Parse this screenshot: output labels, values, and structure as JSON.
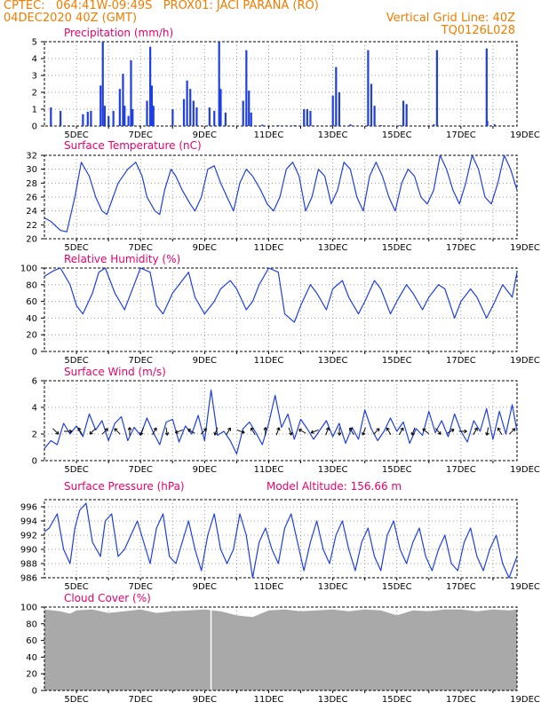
{
  "header": {
    "line1_left": "CPTEC:   064:41W-09:49S   PROX01: JACI PARANA (RO)",
    "line2_left": "04DEC2020 40Z (GMT)",
    "line2_right": "Vertical Grid Line: 40Z",
    "line3_right": "TQ0126L028"
  },
  "colors": {
    "header": "#f07c00",
    "title": "#e8006a",
    "line": "#1f3fe0",
    "cloud": "#a9a9a9",
    "grid": "#9a9a9a"
  },
  "chart_data": [
    {
      "type": "bar",
      "title": "Precipitation (mm/h)",
      "ylim": [
        0,
        5
      ],
      "yticks": [
        0,
        1,
        2,
        3,
        4,
        5
      ],
      "xticks": [
        "5DEC",
        "7DEC",
        "9DEC",
        "11DEC",
        "13DEC",
        "15DEC",
        "17DEC",
        "19DEC"
      ],
      "series": [
        {
          "values": [
            [
              0.2,
              1.1
            ],
            [
              0.5,
              0.9
            ],
            [
              1.2,
              0.7
            ],
            [
              1.35,
              0.85
            ],
            [
              1.45,
              0.9
            ],
            [
              1.75,
              2.4
            ],
            [
              1.82,
              5.0
            ],
            [
              1.88,
              1.2
            ],
            [
              2.0,
              0.6
            ],
            [
              2.15,
              0.9
            ],
            [
              2.35,
              2.2
            ],
            [
              2.45,
              3.1
            ],
            [
              2.5,
              1.2
            ],
            [
              2.62,
              0.6
            ],
            [
              2.7,
              3.9
            ],
            [
              2.75,
              1.0
            ],
            [
              3.2,
              1.5
            ],
            [
              3.3,
              4.7
            ],
            [
              3.35,
              2.4
            ],
            [
              3.4,
              1.2
            ],
            [
              4.0,
              1.0
            ],
            [
              4.35,
              1.6
            ],
            [
              4.45,
              2.7
            ],
            [
              4.55,
              2.2
            ],
            [
              4.65,
              1.5
            ],
            [
              4.75,
              1.1
            ],
            [
              5.15,
              1.1
            ],
            [
              5.3,
              0.9
            ],
            [
              5.45,
              5.0
            ],
            [
              5.5,
              2.2
            ],
            [
              5.65,
              0.8
            ],
            [
              6.2,
              1.5
            ],
            [
              6.3,
              4.5
            ],
            [
              6.38,
              2.1
            ],
            [
              6.45,
              0.8
            ],
            [
              6.8,
              0.08
            ],
            [
              7.3,
              0.05
            ],
            [
              7.8,
              0.05
            ],
            [
              8.1,
              1.0
            ],
            [
              8.2,
              1.0
            ],
            [
              8.3,
              0.9
            ],
            [
              9.0,
              1.8
            ],
            [
              9.1,
              3.5
            ],
            [
              9.2,
              2.0
            ],
            [
              9.55,
              0.1
            ],
            [
              10.1,
              4.5
            ],
            [
              10.2,
              2.5
            ],
            [
              10.3,
              1.2
            ],
            [
              10.5,
              0.05
            ],
            [
              11.1,
              0.05
            ],
            [
              11.2,
              1.5
            ],
            [
              11.3,
              1.3
            ],
            [
              12.15,
              0.1
            ],
            [
              12.25,
              4.5
            ],
            [
              13.8,
              4.6
            ],
            [
              13.82,
              0.3
            ],
            [
              14.05,
              0.1
            ]
          ]
        }
      ]
    },
    {
      "type": "line",
      "title": "Surface Temperature (nC)",
      "ylim": [
        20,
        32
      ],
      "yticks": [
        20,
        22,
        24,
        26,
        28,
        30,
        32
      ],
      "xticks": [
        "5DEC",
        "7DEC",
        "9DEC",
        "11DEC",
        "13DEC",
        "15DEC",
        "17DEC",
        "19DEC"
      ],
      "series": [
        {
          "x": [
            0,
            0.2,
            0.5,
            0.7,
            0.95,
            1.15,
            1.4,
            1.6,
            1.8,
            1.95,
            2.3,
            2.6,
            2.85,
            3.05,
            3.2,
            3.45,
            3.6,
            3.75,
            3.95,
            4.1,
            4.3,
            4.55,
            4.7,
            4.9,
            5.1,
            5.3,
            5.5,
            5.7,
            5.9,
            6.1,
            6.3,
            6.5,
            6.75,
            6.95,
            7.15,
            7.35,
            7.55,
            7.75,
            7.95,
            8.15,
            8.35,
            8.55,
            8.75,
            8.95,
            9.15,
            9.35,
            9.55,
            9.75,
            9.95,
            10.15,
            10.35,
            10.55,
            10.75,
            10.95,
            11.15,
            11.35,
            11.55,
            11.75,
            11.95,
            12.15,
            12.35,
            12.55,
            12.75,
            12.95,
            13.15,
            13.35,
            13.55,
            13.75,
            13.95,
            14.15,
            14.35,
            14.55,
            14.75
          ],
          "values": [
            23,
            22.5,
            21.2,
            21,
            26,
            31,
            29,
            26,
            24,
            23.5,
            28,
            30,
            31,
            29,
            26,
            24,
            23.5,
            27,
            30,
            29,
            27,
            25,
            24,
            26,
            30,
            30.5,
            28,
            26,
            24,
            28,
            30,
            29,
            27,
            25,
            24,
            26,
            30,
            31,
            29,
            24,
            26,
            30,
            29,
            25,
            27,
            31,
            30,
            26,
            24,
            29,
            31,
            29,
            26,
            24,
            28,
            30,
            29,
            26,
            25,
            27,
            32,
            30,
            27,
            25,
            28,
            32,
            30,
            26,
            25,
            28,
            32,
            30,
            27
          ]
        }
      ]
    },
    {
      "type": "line",
      "title": "Relative Humidity (%)",
      "ylim": [
        0,
        100
      ],
      "yticks": [
        0,
        20,
        40,
        60,
        80,
        100
      ],
      "xticks": [
        "5DEC",
        "7DEC",
        "9DEC",
        "11DEC",
        "13DEC",
        "15DEC",
        "17DEC",
        "19DEC"
      ],
      "series": [
        {
          "x": [
            0,
            0.3,
            0.5,
            0.8,
            1.0,
            1.2,
            1.5,
            1.7,
            1.9,
            2.2,
            2.5,
            2.7,
            3.0,
            3.3,
            3.5,
            3.7,
            4.0,
            4.3,
            4.5,
            4.7,
            5.0,
            5.3,
            5.5,
            5.8,
            6.0,
            6.3,
            6.5,
            6.7,
            7.0,
            7.3,
            7.5,
            7.8,
            8.0,
            8.3,
            8.5,
            8.8,
            9.0,
            9.3,
            9.5,
            9.8,
            10.0,
            10.3,
            10.5,
            10.8,
            11.0,
            11.3,
            11.5,
            11.8,
            12.0,
            12.3,
            12.5,
            12.8,
            13.0,
            13.3,
            13.5,
            13.8,
            14.0,
            14.3,
            14.6,
            14.75
          ],
          "values": [
            90,
            97,
            100,
            80,
            55,
            45,
            70,
            95,
            100,
            70,
            50,
            70,
            100,
            95,
            55,
            45,
            70,
            85,
            95,
            65,
            45,
            60,
            75,
            85,
            75,
            50,
            60,
            80,
            100,
            95,
            45,
            35,
            55,
            80,
            70,
            50,
            75,
            85,
            65,
            45,
            60,
            85,
            75,
            45,
            60,
            80,
            70,
            50,
            65,
            80,
            75,
            40,
            60,
            75,
            65,
            40,
            55,
            80,
            65,
            95
          ]
        }
      ]
    },
    {
      "type": "line",
      "title": "Surface Wind (m/s)",
      "ylim": [
        0,
        6
      ],
      "yticks": [
        0,
        2,
        4,
        6
      ],
      "xticks": [
        "5DEC",
        "7DEC",
        "9DEC",
        "11DEC",
        "13DEC",
        "15DEC",
        "17DEC",
        "19DEC"
      ],
      "series": [
        {
          "x": [
            0,
            0.2,
            0.4,
            0.6,
            0.8,
            1.0,
            1.2,
            1.4,
            1.6,
            1.8,
            2.0,
            2.2,
            2.4,
            2.6,
            2.8,
            3.0,
            3.2,
            3.4,
            3.6,
            3.8,
            4.0,
            4.2,
            4.4,
            4.6,
            4.8,
            5.0,
            5.2,
            5.4,
            5.6,
            5.8,
            6.0,
            6.2,
            6.4,
            6.6,
            6.8,
            7.0,
            7.2,
            7.4,
            7.6,
            7.8,
            8.0,
            8.2,
            8.4,
            8.6,
            8.8,
            9.0,
            9.2,
            9.4,
            9.6,
            9.8,
            10.0,
            10.2,
            10.4,
            10.6,
            10.8,
            11.0,
            11.2,
            11.4,
            11.6,
            11.8,
            12.0,
            12.2,
            12.4,
            12.6,
            12.8,
            13.0,
            13.2,
            13.4,
            13.6,
            13.8,
            14.0,
            14.2,
            14.4,
            14.6,
            14.75
          ],
          "values": [
            0.9,
            1.5,
            1.2,
            2.8,
            2.0,
            2.6,
            1.8,
            3.5,
            2.3,
            3.0,
            1.5,
            2.8,
            3.3,
            1.5,
            2.5,
            1.9,
            3.2,
            2.1,
            1.2,
            2.9,
            3.1,
            1.4,
            2.6,
            2.0,
            3.4,
            1.5,
            5.3,
            1.9,
            2.2,
            1.5,
            0.5,
            2.4,
            2.9,
            2.1,
            1.2,
            2.8,
            4.9,
            2.5,
            3.5,
            1.6,
            3.1,
            2.4,
            1.6,
            2.3,
            3.0,
            1.8,
            2.8,
            1.3,
            2.5,
            1.6,
            3.8,
            2.4,
            1.5,
            2.2,
            3.2,
            2.2,
            2.9,
            1.3,
            2.4,
            1.9,
            3.7,
            2.1,
            3.0,
            1.8,
            3.5,
            2.2,
            1.4,
            3.0,
            2.2,
            3.9,
            1.6,
            3.7,
            2.0,
            4.2,
            2.2
          ]
        }
      ],
      "wind_arrows_deg": [
        135,
        90,
        330,
        225,
        45,
        315,
        0,
        200,
        30,
        170,
        250,
        300,
        45,
        200,
        30,
        110,
        330,
        0,
        20,
        160,
        300,
        250,
        20,
        180,
        330,
        200,
        45,
        330,
        30,
        200,
        310,
        140,
        60,
        90,
        30,
        190,
        330,
        45
      ]
    },
    {
      "type": "line",
      "title": "Surface Pressure (hPa)",
      "annotation": "Model Altitude: 156.66 m",
      "ylim": [
        986,
        997
      ],
      "yticks": [
        986,
        988,
        990,
        992,
        994,
        996
      ],
      "xticks": [
        "5DEC",
        "7DEC",
        "9DEC",
        "11DEC",
        "13DEC",
        "15DEC",
        "17DEC",
        "19DEC"
      ],
      "series": [
        {
          "x": [
            0,
            0.15,
            0.4,
            0.6,
            0.8,
            0.95,
            1.1,
            1.3,
            1.5,
            1.75,
            1.9,
            2.1,
            2.3,
            2.5,
            2.7,
            2.9,
            3.1,
            3.3,
            3.5,
            3.7,
            3.9,
            4.1,
            4.3,
            4.5,
            4.7,
            4.9,
            5.1,
            5.3,
            5.5,
            5.7,
            5.9,
            6.1,
            6.3,
            6.5,
            6.7,
            6.9,
            7.1,
            7.3,
            7.5,
            7.7,
            7.9,
            8.1,
            8.3,
            8.5,
            8.7,
            8.9,
            9.1,
            9.3,
            9.5,
            9.7,
            9.9,
            10.1,
            10.3,
            10.5,
            10.7,
            10.9,
            11.1,
            11.3,
            11.5,
            11.7,
            11.9,
            12.1,
            12.3,
            12.5,
            12.7,
            12.9,
            13.1,
            13.3,
            13.5,
            13.7,
            13.9,
            14.1,
            14.3,
            14.5,
            14.75
          ],
          "values": [
            992.5,
            993,
            995,
            990,
            988,
            993,
            995.5,
            996.5,
            991,
            989,
            994,
            995,
            989,
            990,
            992,
            994,
            991,
            988,
            993,
            995,
            989,
            988,
            991,
            994,
            990,
            987,
            992,
            995,
            990,
            988,
            990,
            995,
            992,
            986,
            991,
            993,
            990,
            988,
            993,
            995,
            991,
            987,
            991,
            994,
            990,
            988,
            992,
            994,
            990,
            987,
            991,
            993,
            989,
            987,
            992,
            994,
            990,
            988,
            991,
            993,
            989,
            987,
            990,
            992,
            988,
            987,
            991,
            993,
            989,
            987,
            990,
            992,
            988,
            986,
            989
          ]
        }
      ]
    },
    {
      "type": "area",
      "title": "Cloud Cover (%)",
      "ylim": [
        0,
        100
      ],
      "yticks": [
        0,
        20,
        40,
        60,
        80,
        100
      ],
      "xticks": [
        "5DEC",
        "7DEC",
        "9DEC",
        "11DEC",
        "13DEC",
        "15DEC",
        "17DEC",
        "19DEC"
      ],
      "series": [
        {
          "x": [
            0,
            0.5,
            0.8,
            1.0,
            1.5,
            2.0,
            2.5,
            3.0,
            3.5,
            4.0,
            4.5,
            5.0,
            5.5,
            6.0,
            6.5,
            7.0,
            7.5,
            8.0,
            8.5,
            9.0,
            9.5,
            10.0,
            10.5,
            11.0,
            11.5,
            12.0,
            12.5,
            13.0,
            13.5,
            14.0,
            14.5,
            14.75
          ],
          "values": [
            97,
            95,
            92,
            96,
            97,
            93,
            95,
            97,
            93,
            95,
            96,
            97,
            95,
            90,
            88,
            96,
            97,
            95,
            96,
            97,
            95,
            97,
            96,
            90,
            96,
            95,
            97,
            97,
            95,
            97,
            96,
            97
          ]
        }
      ]
    }
  ]
}
